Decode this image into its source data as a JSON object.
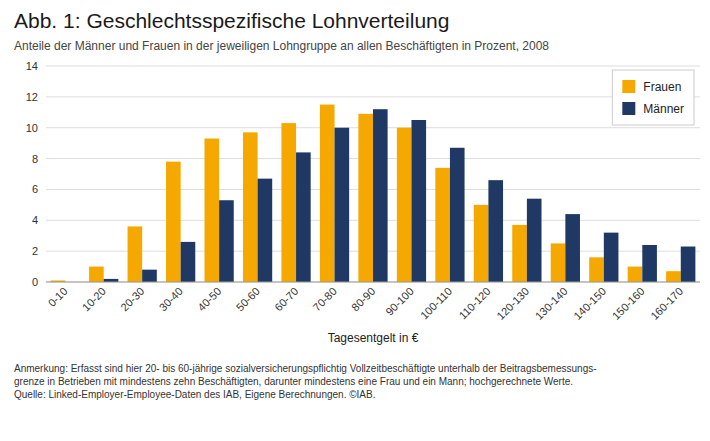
{
  "chart_data": {
    "type": "bar",
    "title": "Abb. 1:  Geschlechtsspezifische Lohnverteilung",
    "subtitle": "Anteile der Männer und Frauen in der jeweiligen Lohngruppe an allen Beschäftigten in Prozent, 2008",
    "xlabel": "Tagesentgelt in €",
    "annotation": "Anmerkung: Erfasst sind hier 20- bis 60-jährige sozialversicherungspflichtig Vollzeitbeschäftigte unterhalb der Beitragsbemessungs-\ngrenze in Betrieben mit mindestens zehn Beschäftigten, darunter mindestens eine Frau und ein Mann; hochgerechnete Werte.\nQuelle: Linked-Employer-Employee-Daten des IAB, Eigene Berechnungen. ©IAB.",
    "categories": [
      "0-10",
      "10-20",
      "20-30",
      "30-40",
      "40-50",
      "50-60",
      "60-70",
      "70-80",
      "80-90",
      "90-100",
      "100-110",
      "110-120",
      "120-130",
      "130-140",
      "140-150",
      "150-160",
      "160-170"
    ],
    "series": [
      {
        "name": "Frauen",
        "color": "#F5A800",
        "values": [
          0.1,
          1.0,
          3.6,
          7.8,
          9.3,
          9.7,
          10.3,
          11.5,
          10.9,
          10.0,
          7.4,
          5.0,
          3.7,
          2.5,
          1.6,
          1.0,
          0.7
        ]
      },
      {
        "name": "Männer",
        "color": "#1F3864",
        "values": [
          0.0,
          0.2,
          0.8,
          2.6,
          5.3,
          6.7,
          8.4,
          10.0,
          11.2,
          10.5,
          8.7,
          6.6,
          5.4,
          4.4,
          3.2,
          2.4,
          2.3
        ]
      }
    ],
    "ylim": [
      0,
      14
    ],
    "yticks": [
      0,
      2,
      4,
      6,
      8,
      10,
      12,
      14
    ],
    "grid": true,
    "legend": "upper right"
  }
}
